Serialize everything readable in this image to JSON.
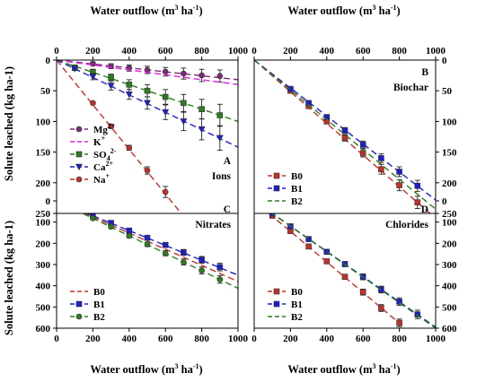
{
  "axes": {
    "x_label": "Water outflow (m3 ha-1)",
    "y_label": "Solute leached (kg ha-1)"
  },
  "chart_data": [
    {
      "type": "scatter",
      "panel": "A",
      "panel_label": "Ions",
      "xlabel": "Water outflow (m3 ha-1)",
      "ylabel": "Solute leached (kg ha-1)",
      "xlim": [
        0,
        1000
      ],
      "ylim": [
        0,
        250
      ],
      "y_inverted": true,
      "xticks": [
        0,
        200,
        400,
        600,
        800,
        1000
      ],
      "yticks": [
        0,
        50,
        100,
        150,
        200,
        250
      ],
      "legend_position": "left",
      "series": [
        {
          "name": "Mg2+",
          "color": "#7a2b7a",
          "marker": "circle",
          "x": [
            200,
            300,
            400,
            500,
            600,
            700,
            800,
            900
          ],
          "y": [
            6,
            10,
            13,
            16,
            19,
            22,
            25,
            26
          ],
          "err": [
            3,
            4,
            5,
            6,
            7,
            9,
            10,
            10
          ],
          "fit": [
            0,
            1000,
            0,
            32
          ]
        },
        {
          "name": "K",
          "color": "#e020e0",
          "marker": "none",
          "x": [],
          "y": [],
          "err": [],
          "fit": [
            0,
            1000,
            0,
            40
          ]
        },
        {
          "name": "SO42-",
          "color": "#2e7d1f",
          "marker": "square",
          "x": [
            100,
            200,
            300,
            400,
            500,
            600,
            700,
            800,
            900
          ],
          "y": [
            12,
            20,
            28,
            40,
            50,
            60,
            70,
            80,
            90
          ],
          "err": [
            3,
            5,
            5,
            8,
            10,
            12,
            14,
            16,
            18
          ],
          "fit": [
            0,
            1000,
            0,
            100
          ]
        },
        {
          "name": "Ca2+",
          "color": "#1f1fc8",
          "marker": "down-triangle",
          "x": [
            100,
            200,
            300,
            400,
            500,
            600,
            700,
            800,
            900
          ],
          "y": [
            14,
            27,
            42,
            56,
            70,
            85,
            100,
            113,
            127
          ],
          "err": [
            3,
            5,
            7,
            8,
            10,
            12,
            15,
            17,
            20
          ],
          "fit": [
            0,
            1000,
            0,
            142
          ]
        },
        {
          "name": "Na+",
          "color": "#c0302a",
          "marker": "circle",
          "x": [
            200,
            300,
            400,
            500,
            600
          ],
          "y": [
            70,
            108,
            143,
            180,
            215
          ],
          "err": [
            2,
            3,
            4,
            6,
            9
          ],
          "fit": [
            0,
            1000,
            0,
            364
          ]
        }
      ]
    },
    {
      "type": "scatter",
      "panel": "B",
      "panel_label": "Biochar",
      "xlabel": "Water outflow (m3 ha-1)",
      "ylabel": "",
      "xlim": [
        0,
        1000
      ],
      "ylim": [
        0,
        250
      ],
      "y_inverted": true,
      "xticks": [
        0,
        200,
        400,
        600,
        800,
        1000
      ],
      "yticks": [
        0,
        50,
        100,
        150,
        200,
        250
      ],
      "legend_position": "bottom-left",
      "series": [
        {
          "name": "B0",
          "color": "#c0302a",
          "marker": "square",
          "x": [
            200,
            300,
            400,
            500,
            600,
            700,
            800,
            900
          ],
          "y": [
            50,
            75,
            100,
            127,
            152,
            178,
            204,
            232
          ],
          "err": [
            3,
            3,
            4,
            5,
            6,
            8,
            9,
            10
          ],
          "fit": [
            0,
            1000,
            0,
            258
          ]
        },
        {
          "name": "B1",
          "color": "#1f1fc8",
          "marker": "square",
          "x": [
            200,
            300,
            400,
            500,
            600,
            700,
            800,
            900
          ],
          "y": [
            47,
            70,
            93,
            115,
            138,
            160,
            182,
            205
          ],
          "err": [
            3,
            3,
            4,
            5,
            6,
            7,
            8,
            9
          ],
          "fit": [
            0,
            1000,
            0,
            228
          ]
        },
        {
          "name": "B2",
          "color": "#2e7d1f",
          "marker": "none",
          "x": [],
          "y": [],
          "err": [],
          "fit": [
            0,
            1000,
            0,
            243
          ]
        }
      ]
    },
    {
      "type": "scatter",
      "panel": "C",
      "panel_label": "Nitrates",
      "xlabel": "Water outflow (m3 ha-1)",
      "ylabel": "Solute leached (kg ha-1)",
      "xlim": [
        0,
        1000
      ],
      "ylim": [
        0,
        600
      ],
      "y_inverted": true,
      "xticks": [
        0,
        200,
        400,
        600,
        800,
        1000
      ],
      "yticks": [
        0,
        100,
        200,
        300,
        400,
        500,
        600
      ],
      "legend_position": "bottom-left",
      "series": [
        {
          "name": "B0",
          "color": "#c0302a",
          "marker": "none",
          "x": [],
          "y": [],
          "err": [],
          "fit": [
            0,
            1000,
            0,
            380
          ]
        },
        {
          "name": "B1",
          "color": "#1f1fc8",
          "marker": "square",
          "x": [
            100,
            200,
            300,
            400,
            500,
            600,
            700,
            800,
            900
          ],
          "y": [
            38,
            70,
            104,
            140,
            174,
            208,
            243,
            278,
            312
          ],
          "err": [
            5,
            6,
            8,
            9,
            10,
            12,
            14,
            16,
            18
          ],
          "fit": [
            0,
            1000,
            0,
            350
          ]
        },
        {
          "name": "B2",
          "color": "#2e7d1f",
          "marker": "circle",
          "x": [
            100,
            200,
            300,
            400,
            500,
            600,
            700,
            800,
            900
          ],
          "y": [
            42,
            82,
            122,
            165,
            205,
            247,
            288,
            328,
            370
          ],
          "err": [
            5,
            6,
            8,
            9,
            10,
            12,
            14,
            16,
            18
          ],
          "fit": [
            0,
            1000,
            0,
            412
          ]
        }
      ]
    },
    {
      "type": "scatter",
      "panel": "D",
      "panel_label": "Chlorides",
      "xlabel": "Water outflow (m3 ha-1)",
      "ylabel": "",
      "xlim": [
        0,
        1000
      ],
      "ylim": [
        0,
        600
      ],
      "y_inverted": true,
      "xticks": [
        0,
        200,
        400,
        600,
        800,
        1000
      ],
      "yticks": [
        0,
        100,
        200,
        300,
        400,
        500,
        600
      ],
      "legend_position": "bottom-left",
      "series": [
        {
          "name": "B0",
          "color": "#c0302a",
          "marker": "square",
          "x": [
            100,
            200,
            300,
            400,
            500,
            600,
            700,
            800
          ],
          "y": [
            70,
            142,
            215,
            285,
            358,
            430,
            505,
            575
          ],
          "err": [
            6,
            8,
            9,
            10,
            12,
            14,
            16,
            18
          ],
          "fit": [
            0,
            1000,
            0,
            720
          ]
        },
        {
          "name": "B1",
          "color": "#1f1fc8",
          "marker": "square",
          "x": [
            100,
            200,
            300,
            400,
            500,
            600,
            700,
            800,
            900
          ],
          "y": [
            60,
            120,
            180,
            240,
            298,
            358,
            418,
            475,
            535
          ],
          "err": [
            6,
            8,
            9,
            10,
            12,
            14,
            16,
            18,
            20
          ],
          "fit": [
            0,
            1000,
            0,
            595
          ]
        },
        {
          "name": "B2",
          "color": "#2e7d1f",
          "marker": "none",
          "x": [],
          "y": [],
          "err": [],
          "fit": [
            0,
            1000,
            0,
            600
          ]
        }
      ]
    }
  ]
}
